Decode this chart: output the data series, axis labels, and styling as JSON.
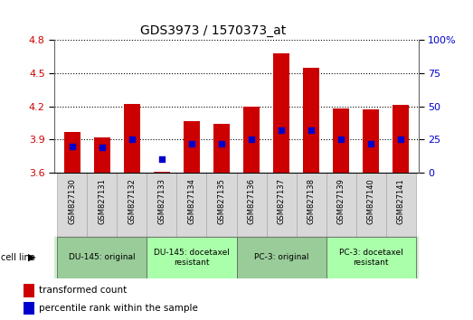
{
  "title": "GDS3973 / 1570373_at",
  "samples": [
    "GSM827130",
    "GSM827131",
    "GSM827132",
    "GSM827133",
    "GSM827134",
    "GSM827135",
    "GSM827136",
    "GSM827137",
    "GSM827138",
    "GSM827139",
    "GSM827140",
    "GSM827141"
  ],
  "transformed_count": [
    3.97,
    3.92,
    4.22,
    3.61,
    4.07,
    4.04,
    4.2,
    4.68,
    4.55,
    4.18,
    4.17,
    4.21
  ],
  "percentile_rank": [
    20,
    19,
    25,
    10,
    22,
    22,
    25,
    32,
    32,
    25,
    22,
    25
  ],
  "ymin": 3.6,
  "ymax": 4.8,
  "yticks_left": [
    3.6,
    3.9,
    4.2,
    4.5,
    4.8
  ],
  "yticks_right": [
    0,
    25,
    50,
    75,
    100
  ],
  "bar_color": "#cc0000",
  "dot_color": "#0000cc",
  "cell_line_labels": [
    "DU-145: original",
    "DU-145: docetaxel\nresistant",
    "PC-3: original",
    "PC-3: docetaxel\nresistant"
  ],
  "cell_line_spans": [
    [
      0,
      3
    ],
    [
      3,
      6
    ],
    [
      6,
      9
    ],
    [
      9,
      12
    ]
  ],
  "cell_line_colors": [
    "#99cc99",
    "#aaffaa",
    "#99cc99",
    "#aaffaa"
  ],
  "background_color": "#ffffff",
  "plot_bg_color": "#ffffff",
  "grid_color": "#000000",
  "tick_label_color_left": "#cc0000",
  "tick_label_color_right": "#0000cc",
  "legend_items": [
    "transformed count",
    "percentile rank within the sample"
  ],
  "sample_box_color": "#d8d8d8",
  "cell_line_row_bg": "#cceecc"
}
